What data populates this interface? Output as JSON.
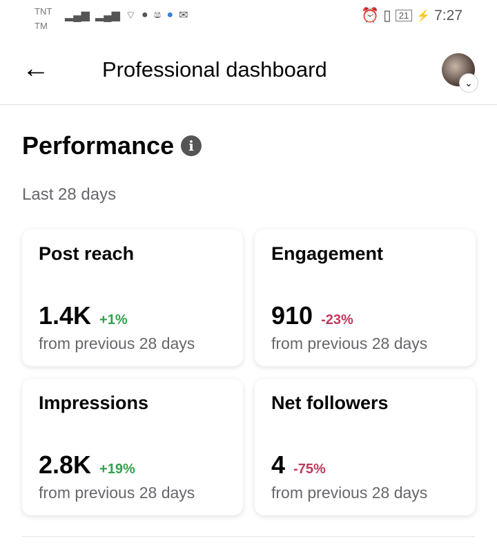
{
  "status_bar": {
    "carrier_1": "TNT",
    "carrier_2": "TM",
    "battery": "21",
    "time": "7:27",
    "colors": {
      "up": "#31a24c",
      "down": "#c0395b"
    }
  },
  "header": {
    "title": "Professional dashboard"
  },
  "performance": {
    "title": "Performance",
    "period": "Last 28 days",
    "cards": [
      {
        "label": "Post reach",
        "value": "1.4K",
        "change": "+1%",
        "trend": "up",
        "sub": "from previous 28 days"
      },
      {
        "label": "Engagement",
        "value": "910",
        "change": "-23%",
        "trend": "down",
        "sub": "from previous 28 days"
      },
      {
        "label": "Impressions",
        "value": "2.8K",
        "change": "+19%",
        "trend": "up",
        "sub": "from previous 28 days"
      },
      {
        "label": "Net followers",
        "value": "4",
        "change": "-75%",
        "trend": "down",
        "sub": "from previous 28 days"
      }
    ]
  }
}
